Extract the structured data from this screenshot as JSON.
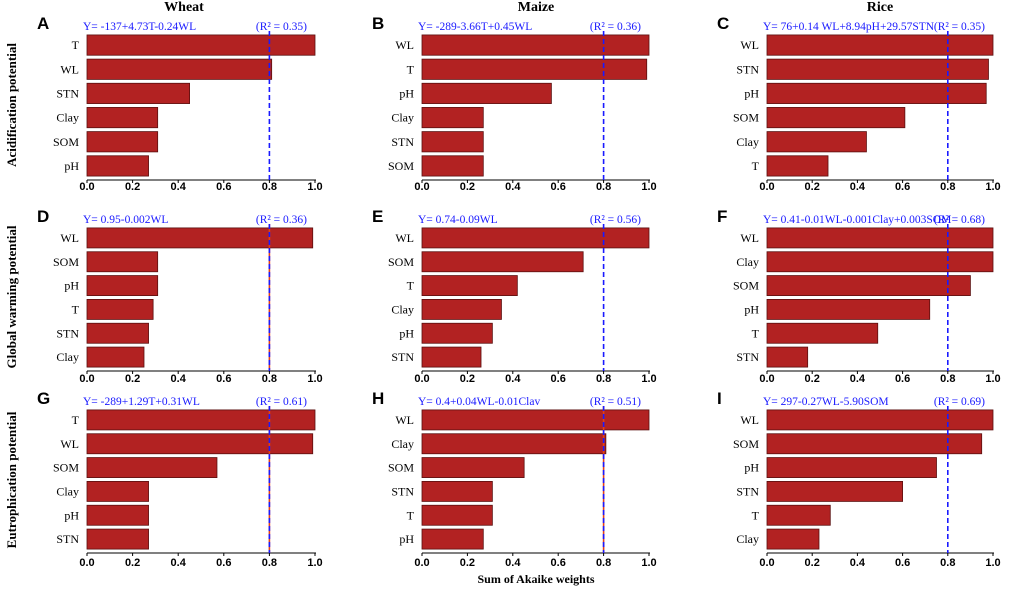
{
  "column_titles": [
    "Wheat",
    "Maize",
    "Rice"
  ],
  "row_labels": [
    "Acidification potential",
    "Global warming potential",
    "Eutrophication potential"
  ],
  "xlabel": "Sum of Akaike weights",
  "colors": {
    "bar": "#b22222",
    "bar_edge": "#5a0f0f",
    "threshold": "#1a1aff",
    "threshold_red": "#e0401a",
    "equation": "#1a1aff"
  },
  "chart_data": [
    {
      "panel": "A",
      "type": "bar",
      "crop": "Wheat",
      "impact": "Acidification potential",
      "equation": "Y= -137+4.73T-0.24WL",
      "r2": "(R² = 0.35)",
      "threshold": 0.8,
      "red_threshold": false,
      "categories": [
        "T",
        "WL",
        "STN",
        "Clay",
        "SOM",
        "pH"
      ],
      "values": [
        1.0,
        0.81,
        0.45,
        0.31,
        0.31,
        0.27
      ],
      "xlim": [
        0,
        1
      ],
      "ticks": [
        "0.0",
        "0.2",
        "0.4",
        "0.6",
        "0.8",
        "1.0"
      ]
    },
    {
      "panel": "B",
      "type": "bar",
      "crop": "Maize",
      "impact": "Acidification potential",
      "equation": "Y= -289-3.66T+0.45WL",
      "r2": "(R² = 0.36)",
      "threshold": 0.8,
      "red_threshold": false,
      "categories": [
        "WL",
        "T",
        "pH",
        "Clay",
        "STN",
        "SOM"
      ],
      "values": [
        1.0,
        0.99,
        0.57,
        0.27,
        0.27,
        0.27
      ],
      "xlim": [
        0,
        1
      ],
      "ticks": [
        "0.0",
        "0.2",
        "0.4",
        "0.6",
        "0.8",
        "1.0"
      ]
    },
    {
      "panel": "C",
      "type": "bar",
      "crop": "Rice",
      "impact": "Acidification potential",
      "equation": "Y= 76+0.14 WL+8.94pH+29.57STN",
      "r2": "(R² = 0.35)",
      "threshold": 0.8,
      "red_threshold": false,
      "categories": [
        "WL",
        "STN",
        "pH",
        "SOM",
        "Clay",
        "T"
      ],
      "values": [
        1.0,
        0.98,
        0.97,
        0.61,
        0.44,
        0.27
      ],
      "xlim": [
        0,
        1
      ],
      "ticks": [
        "0.0",
        "0.2",
        "0.4",
        "0.6",
        "0.8",
        "1.0"
      ]
    },
    {
      "panel": "D",
      "type": "bar",
      "crop": "Wheat",
      "impact": "Global warming potential",
      "equation": "Y= 0.95-0.002WL",
      "r2": "(R² = 0.36)",
      "threshold": 0.8,
      "red_threshold": true,
      "categories": [
        "WL",
        "SOM",
        "pH",
        "T",
        "STN",
        "Clay"
      ],
      "values": [
        0.99,
        0.31,
        0.31,
        0.29,
        0.27,
        0.25
      ],
      "xlim": [
        0,
        1
      ],
      "ticks": [
        "0.0",
        "0.2",
        "0.4",
        "0.6",
        "0.8",
        "1.0"
      ]
    },
    {
      "panel": "E",
      "type": "bar",
      "crop": "Maize",
      "impact": "Global warming potential",
      "equation": "Y= 0.74-0.09WL",
      "r2": "(R² = 0.56)",
      "threshold": 0.8,
      "red_threshold": false,
      "categories": [
        "WL",
        "SOM",
        "T",
        "Clay",
        "pH",
        "STN"
      ],
      "values": [
        1.0,
        0.71,
        0.42,
        0.35,
        0.31,
        0.26
      ],
      "xlim": [
        0,
        1
      ],
      "ticks": [
        "0.0",
        "0.2",
        "0.4",
        "0.6",
        "0.8",
        "1.0"
      ]
    },
    {
      "panel": "F",
      "type": "bar",
      "crop": "Rice",
      "impact": "Global warming potential",
      "equation": "Y= 0.41-0.01WL-0.001Clay+0.003SOM",
      "r2": "(R² = 0.68)",
      "threshold": 0.8,
      "red_threshold": false,
      "categories": [
        "WL",
        "Clay",
        "SOM",
        "pH",
        "T",
        "STN"
      ],
      "values": [
        1.0,
        1.0,
        0.9,
        0.72,
        0.49,
        0.18
      ],
      "xlim": [
        0,
        1
      ],
      "ticks": [
        "0.0",
        "0.2",
        "0.4",
        "0.6",
        "0.8",
        "1.0"
      ]
    },
    {
      "panel": "G",
      "type": "bar",
      "crop": "Wheat",
      "impact": "Eutrophication potential",
      "equation": "Y= -289+1.29T+0.31WL",
      "r2": "(R² = 0.61)",
      "threshold": 0.8,
      "red_threshold": true,
      "categories": [
        "T",
        "WL",
        "SOM",
        "Clay",
        "pH",
        "STN"
      ],
      "values": [
        1.0,
        0.99,
        0.57,
        0.27,
        0.27,
        0.27
      ],
      "xlim": [
        0,
        1
      ],
      "ticks": [
        "0.0",
        "0.2",
        "0.4",
        "0.6",
        "0.8",
        "1.0"
      ]
    },
    {
      "panel": "H",
      "type": "bar",
      "crop": "Maize",
      "impact": "Eutrophication potential",
      "equation": "Y= 0.4+0.04WL-0.01Clav",
      "r2": "(R² = 0.51)",
      "threshold": 0.8,
      "red_threshold": true,
      "categories": [
        "WL",
        "Clay",
        "SOM",
        "STN",
        "T",
        "pH"
      ],
      "values": [
        1.0,
        0.81,
        0.45,
        0.31,
        0.31,
        0.27
      ],
      "xlim": [
        0,
        1
      ],
      "ticks": [
        "0.0",
        "0.2",
        "0.4",
        "0.6",
        "0.8",
        "1.0"
      ]
    },
    {
      "panel": "I",
      "type": "bar",
      "crop": "Rice",
      "impact": "Eutrophication potential",
      "equation": "Y= 297-0.27WL-5.90SOM",
      "r2": "(R² = 0.69)",
      "threshold": 0.8,
      "red_threshold": false,
      "categories": [
        "WL",
        "SOM",
        "pH",
        "STN",
        "T",
        "Clay"
      ],
      "values": [
        1.0,
        0.95,
        0.75,
        0.6,
        0.28,
        0.23
      ],
      "xlim": [
        0,
        1
      ],
      "ticks": [
        "0.0",
        "0.2",
        "0.4",
        "0.6",
        "0.8",
        "1.0"
      ]
    }
  ]
}
